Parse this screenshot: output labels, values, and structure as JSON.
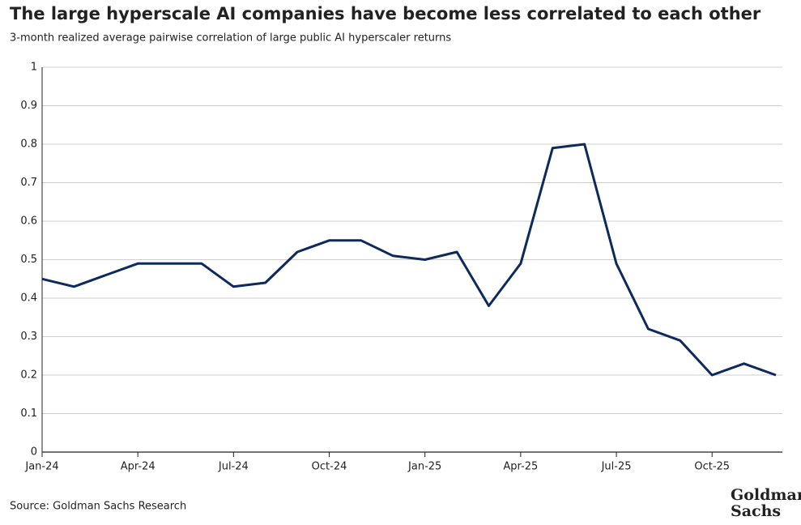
{
  "chart_data": {
    "type": "line",
    "title": "The large hyperscale AI companies have become less correlated to each other",
    "subtitle": "3-month realized average pairwise correlation of large public AI hyperscaler returns",
    "source": "Source: Goldman Sachs Research",
    "logo": [
      "Goldman",
      "Sachs"
    ],
    "x": [
      "2024-01",
      "2024-02",
      "2024-03",
      "2024-04",
      "2024-05",
      "2024-06",
      "2024-07",
      "2024-08",
      "2024-09",
      "2024-10",
      "2024-11",
      "2024-12",
      "2025-01",
      "2025-02",
      "2025-03",
      "2025-04",
      "2025-05",
      "2025-06",
      "2025-07",
      "2025-08",
      "2025-09",
      "2025-10",
      "2025-11",
      "2025-12"
    ],
    "series": [
      {
        "color": "#0d2a5c",
        "values": [
          0.45,
          0.43,
          0.46,
          0.49,
          0.49,
          0.49,
          0.43,
          0.44,
          0.52,
          0.55,
          0.55,
          0.51,
          0.5,
          0.52,
          0.38,
          0.49,
          0.79,
          0.8,
          0.49,
          0.32,
          0.29,
          0.2,
          0.23,
          0.2
        ]
      }
    ],
    "xlim": [
      "2024-01",
      "2025-12"
    ],
    "xticks": [
      {
        "value": "2024-01",
        "label": "Jan-24"
      },
      {
        "value": "2024-04",
        "label": "Apr-24"
      },
      {
        "value": "2024-07",
        "label": "Jul-24"
      },
      {
        "value": "2024-10",
        "label": "Oct-24"
      },
      {
        "value": "2025-01",
        "label": "Jan-25"
      },
      {
        "value": "2025-04",
        "label": "Apr-25"
      },
      {
        "value": "2025-07",
        "label": "Jul-25"
      },
      {
        "value": "2025-10",
        "label": "Oct-25"
      }
    ],
    "ylim": [
      0,
      1
    ],
    "yticks": [
      0,
      0.1,
      0.2,
      0.3,
      0.4,
      0.5,
      0.6,
      0.7,
      0.8,
      0.9,
      1
    ],
    "grid": true
  }
}
